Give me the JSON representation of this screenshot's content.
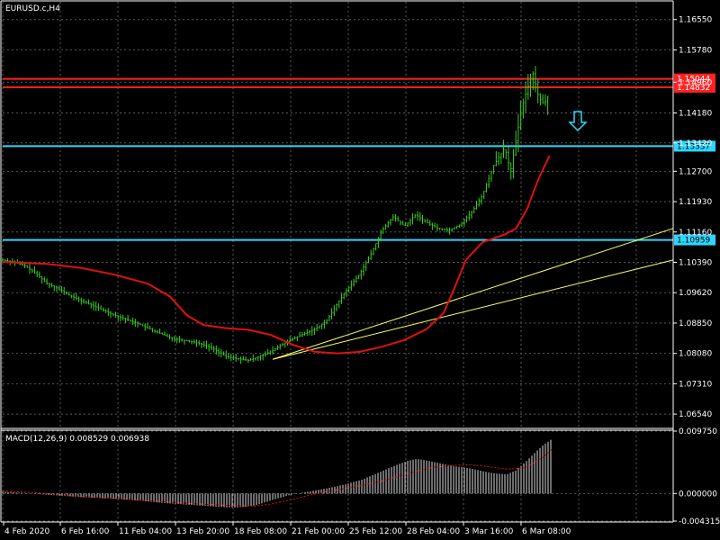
{
  "chart_title": "EURUSD.c,H4",
  "chart_data": [
    {
      "type": "candlestick",
      "title": "EURUSD.c,H4",
      "ylim": [
        1.062,
        1.17
      ],
      "y_ticks": [
        "1.16550",
        "1.15780",
        "1.14960",
        "1.14180",
        "1.13420",
        "1.12700",
        "1.11930",
        "1.11160",
        "1.10390",
        "1.09620",
        "1.08850",
        "1.08080",
        "1.07310",
        "1.06540"
      ],
      "y_tick_values": [
        1.1655,
        1.1578,
        1.1496,
        1.1418,
        1.1342,
        1.127,
        1.1193,
        1.1116,
        1.1039,
        1.0962,
        1.0885,
        1.0808,
        1.0731,
        1.0654
      ],
      "x_ticks": [
        "4 Feb 2020",
        "6 Feb 16:00",
        "11 Feb 04:00",
        "13 Feb 20:00",
        "18 Feb 08:00",
        "21 Feb 00:00",
        "25 Feb 12:00",
        "28 Feb 04:00",
        "3 Mar 16:00",
        "6 Mar 08:00"
      ],
      "price_path": [
        [
          0,
          1.1045
        ],
        [
          10,
          1.104
        ],
        [
          20,
          1.103
        ],
        [
          30,
          1.101
        ],
        [
          40,
          1.0985
        ],
        [
          50,
          1.0972
        ],
        [
          60,
          1.0955
        ],
        [
          70,
          1.0942
        ],
        [
          80,
          1.093
        ],
        [
          90,
          1.0918
        ],
        [
          100,
          1.0905
        ],
        [
          110,
          1.0895
        ],
        [
          120,
          1.0885
        ],
        [
          130,
          1.0872
        ],
        [
          140,
          1.086
        ],
        [
          150,
          1.0848
        ],
        [
          160,
          1.0842
        ],
        [
          170,
          1.0838
        ],
        [
          180,
          1.083
        ],
        [
          190,
          1.0818
        ],
        [
          200,
          1.08
        ],
        [
          210,
          1.0795
        ],
        [
          220,
          1.079
        ],
        [
          230,
          1.08
        ],
        [
          240,
          1.0812
        ],
        [
          250,
          1.083
        ],
        [
          260,
          1.0845
        ],
        [
          270,
          1.0858
        ],
        [
          280,
          1.087
        ],
        [
          290,
          1.089
        ],
        [
          300,
          1.0935
        ],
        [
          310,
          1.0975
        ],
        [
          320,
          1.101
        ],
        [
          330,
          1.106
        ],
        [
          340,
          1.112
        ],
        [
          350,
          1.1155
        ],
        [
          360,
          1.113
        ],
        [
          370,
          1.116
        ],
        [
          380,
          1.114
        ],
        [
          390,
          1.1125
        ],
        [
          400,
          1.112
        ],
        [
          410,
          1.1135
        ],
        [
          420,
          1.1165
        ],
        [
          430,
          1.121
        ],
        [
          440,
          1.1285
        ],
        [
          450,
          1.133
        ],
        [
          455,
          1.127
        ],
        [
          460,
          1.135
        ],
        [
          465,
          1.143
        ],
        [
          470,
          1.148
        ],
        [
          475,
          1.152
        ],
        [
          480,
          1.146
        ],
        [
          485,
          1.144
        ],
        [
          490,
          1.147
        ]
      ],
      "ma_path": [
        [
          0,
          1.104
        ],
        [
          40,
          1.1035
        ],
        [
          70,
          1.1025
        ],
        [
          100,
          1.1008
        ],
        [
          130,
          1.0985
        ],
        [
          150,
          1.0952
        ],
        [
          165,
          1.0905
        ],
        [
          180,
          1.088
        ],
        [
          200,
          1.0872
        ],
        [
          220,
          1.0868
        ],
        [
          240,
          1.0855
        ],
        [
          260,
          1.083
        ],
        [
          280,
          1.0812
        ],
        [
          300,
          1.0808
        ],
        [
          320,
          1.0812
        ],
        [
          340,
          1.0825
        ],
        [
          360,
          1.0842
        ],
        [
          380,
          1.087
        ],
        [
          395,
          1.091
        ],
        [
          405,
          1.0975
        ],
        [
          415,
          1.1045
        ],
        [
          430,
          1.109
        ],
        [
          450,
          1.111
        ],
        [
          460,
          1.1125
        ],
        [
          470,
          1.1175
        ],
        [
          480,
          1.125
        ],
        [
          490,
          1.131
        ]
      ],
      "lines": [
        {
          "label": "1.15044",
          "price": 1.15044,
          "color": "#ff2020"
        },
        {
          "label": "1.14832",
          "price": 1.14832,
          "color": "#ff2020"
        },
        {
          "label": "1.13337",
          "price": 1.13337,
          "color": "#2fd6ff"
        },
        {
          "label": "1.10959",
          "price": 1.10959,
          "color": "#2fd6ff"
        }
      ],
      "trendlines": [
        {
          "color": "#ffff66",
          "from": [
            245,
            1.0793
          ],
          "to": [
            610,
            1.1125
          ]
        },
        {
          "color": "#ffff66",
          "from": [
            245,
            1.0793
          ],
          "to": [
            610,
            1.1045
          ]
        }
      ],
      "colors": {
        "background": "#000000",
        "grid": "#5a5a5a",
        "candle": "#39d020",
        "ma": "#e01010",
        "text": "#ffffff"
      }
    },
    {
      "type": "bar",
      "title": "MACD(12,26,9) 0.008529 0.006938",
      "ylim": [
        -0.004315,
        0.00975
      ],
      "y_ticks": [
        "0.009750",
        "0.000000",
        "-0.004315"
      ],
      "y_tick_values": [
        0.00975,
        0.0,
        -0.004315
      ],
      "macd_path": [
        [
          0,
          0.0003
        ],
        [
          30,
          0.0
        ],
        [
          60,
          -0.0003
        ],
        [
          90,
          -0.0006
        ],
        [
          120,
          -0.0008
        ],
        [
          150,
          -0.0011
        ],
        [
          180,
          -0.0015
        ],
        [
          210,
          -0.0018
        ],
        [
          240,
          -0.0021
        ],
        [
          260,
          -0.0022
        ],
        [
          280,
          -0.0019
        ],
        [
          300,
          -0.001
        ],
        [
          320,
          -0.0002
        ],
        [
          340,
          0.0003
        ],
        [
          360,
          0.0008
        ],
        [
          380,
          0.0014
        ],
        [
          400,
          0.0022
        ],
        [
          420,
          0.0034
        ],
        [
          440,
          0.0046
        ],
        [
          450,
          0.0051
        ],
        [
          460,
          0.0054
        ],
        [
          470,
          0.0052
        ],
        [
          480,
          0.0049
        ],
        [
          490,
          0.0046
        ],
        [
          500,
          0.0043
        ],
        [
          510,
          0.0041
        ],
        [
          520,
          0.0039
        ],
        [
          530,
          0.0036
        ],
        [
          540,
          0.0033
        ],
        [
          550,
          0.0031
        ],
        [
          560,
          0.003
        ],
        [
          570,
          0.0036
        ],
        [
          580,
          0.0048
        ],
        [
          590,
          0.0062
        ],
        [
          600,
          0.0075
        ],
        [
          610,
          0.0085
        ]
      ],
      "signal_path": [
        [
          0,
          0.0004
        ],
        [
          40,
          0.0001
        ],
        [
          80,
          -0.0004
        ],
        [
          120,
          -0.0007
        ],
        [
          160,
          -0.0011
        ],
        [
          200,
          -0.0015
        ],
        [
          240,
          -0.0018
        ],
        [
          280,
          -0.002
        ],
        [
          300,
          -0.0016
        ],
        [
          320,
          -0.001
        ],
        [
          340,
          -0.0003
        ],
        [
          360,
          0.0003
        ],
        [
          380,
          0.0008
        ],
        [
          400,
          0.0013
        ],
        [
          420,
          0.0019
        ],
        [
          440,
          0.0027
        ],
        [
          460,
          0.0035
        ],
        [
          480,
          0.0041
        ],
        [
          500,
          0.0044
        ],
        [
          520,
          0.0045
        ],
        [
          540,
          0.0042
        ],
        [
          560,
          0.0038
        ],
        [
          580,
          0.004
        ],
        [
          600,
          0.0056
        ],
        [
          610,
          0.0069
        ]
      ],
      "colors": {
        "hist": "#d8d8d8",
        "signal": "#e01010"
      }
    }
  ]
}
